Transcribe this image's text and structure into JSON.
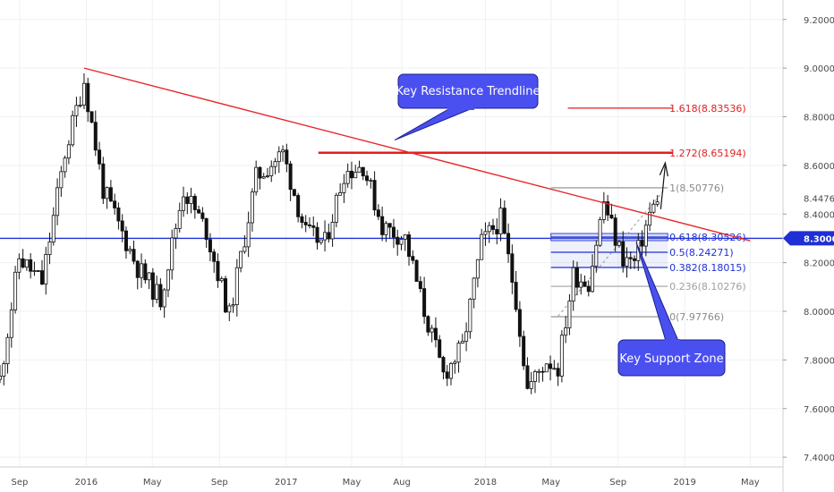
{
  "chart_data": {
    "type": "candlestick",
    "title": "",
    "y_range": [
      7.36,
      9.28
    ],
    "y_ticks": [
      "9.20000",
      "9.00000",
      "8.80000",
      "8.60000",
      "8.40000",
      "8.20000",
      "8.00000",
      "7.80000",
      "7.60000",
      "7.40000"
    ],
    "y_tick_values": [
      9.2,
      9.0,
      8.8,
      8.6,
      8.4,
      8.2,
      8.0,
      7.8,
      7.6,
      7.4
    ],
    "x_ticks": [
      "Sep",
      "2016",
      "May",
      "Sep",
      "2017",
      "May",
      "Aug",
      "2018",
      "May",
      "Sep",
      "2019",
      "May"
    ],
    "x_range": [
      "2015-07-27",
      "2019-06-30"
    ],
    "grid": true,
    "price_anchors": [
      {
        "date": "2015-07-27",
        "price": 7.72
      },
      {
        "date": "2015-08-31",
        "price": 8.22
      },
      {
        "date": "2015-10-12",
        "price": 8.12
      },
      {
        "date": "2015-11-23",
        "price": 8.65
      },
      {
        "date": "2015-12-28",
        "price": 8.95
      },
      {
        "date": "2016-02-01",
        "price": 8.5
      },
      {
        "date": "2016-04-04",
        "price": 8.18
      },
      {
        "date": "2016-05-16",
        "price": 8.05
      },
      {
        "date": "2016-06-27",
        "price": 8.5
      },
      {
        "date": "2016-08-08",
        "price": 8.33
      },
      {
        "date": "2016-09-19",
        "price": 7.98
      },
      {
        "date": "2016-11-07",
        "price": 8.55
      },
      {
        "date": "2016-12-26",
        "price": 8.65
      },
      {
        "date": "2017-02-06",
        "price": 8.32
      },
      {
        "date": "2017-03-13",
        "price": 8.28
      },
      {
        "date": "2017-04-17",
        "price": 8.57
      },
      {
        "date": "2017-05-22",
        "price": 8.6
      },
      {
        "date": "2017-06-26",
        "price": 8.35
      },
      {
        "date": "2017-08-07",
        "price": 8.3
      },
      {
        "date": "2017-09-11",
        "price": 8.0
      },
      {
        "date": "2017-10-16",
        "price": 7.74
      },
      {
        "date": "2017-11-20",
        "price": 7.85
      },
      {
        "date": "2017-12-25",
        "price": 8.28
      },
      {
        "date": "2018-01-29",
        "price": 8.38
      },
      {
        "date": "2018-02-26",
        "price": 8.05
      },
      {
        "date": "2018-03-19",
        "price": 7.68
      },
      {
        "date": "2018-04-23",
        "price": 7.8
      },
      {
        "date": "2018-05-14",
        "price": 7.77
      },
      {
        "date": "2018-06-11",
        "price": 8.15
      },
      {
        "date": "2018-07-09",
        "price": 8.12
      },
      {
        "date": "2018-08-06",
        "price": 8.45
      },
      {
        "date": "2018-08-27",
        "price": 8.3
      },
      {
        "date": "2018-09-10",
        "price": 8.22
      },
      {
        "date": "2018-10-01",
        "price": 8.2
      },
      {
        "date": "2018-10-29",
        "price": 8.4
      },
      {
        "date": "2018-11-12",
        "price": 8.45
      }
    ],
    "current_price": {
      "label": "8.44760",
      "value": 8.4476
    },
    "support_price": {
      "label": "8.30001",
      "value": 8.30001
    },
    "resistance_trendline": {
      "start": {
        "date": "2015-12-28",
        "price": 9.0
      },
      "end": {
        "date": "2019-05-01",
        "price": 8.29
      }
    },
    "horizontal_support": {
      "price": 8.30001
    },
    "fib_levels": [
      {
        "label": "1.618(8.83536)",
        "value": 8.83536,
        "color": "#e02020"
      },
      {
        "label": "1.272(8.65194)",
        "value": 8.65194,
        "color": "#e02020"
      },
      {
        "label": "1(8.50776)",
        "value": 8.50776,
        "color": "#8a8a8a"
      },
      {
        "label": "0.618(8.30526)",
        "value": 8.30526,
        "color": "#1f2fd6"
      },
      {
        "label": "0.5(8.24271)",
        "value": 8.24271,
        "color": "#1f2fd6"
      },
      {
        "label": "0.382(8.18015)",
        "value": 8.18015,
        "color": "#1f2fd6"
      },
      {
        "label": "0.236(8.10276)",
        "value": 8.10276,
        "color": "#a0a0a0"
      },
      {
        "label": "0(7.97766)",
        "value": 7.97766,
        "color": "#8a8a8a"
      }
    ],
    "annotations": [
      {
        "text": "Key Resistance Trendline",
        "pointer": {
          "date": "2017-08-01",
          "price": 8.66
        }
      },
      {
        "text": "Key Support Zone",
        "pointer": {
          "date": "2018-10-01",
          "price": 8.29
        }
      }
    ],
    "colors": {
      "trendline": "#e8262a",
      "support": "#1f2fd6",
      "callout_fill": "#4a50f0",
      "candle": "#111111"
    }
  }
}
